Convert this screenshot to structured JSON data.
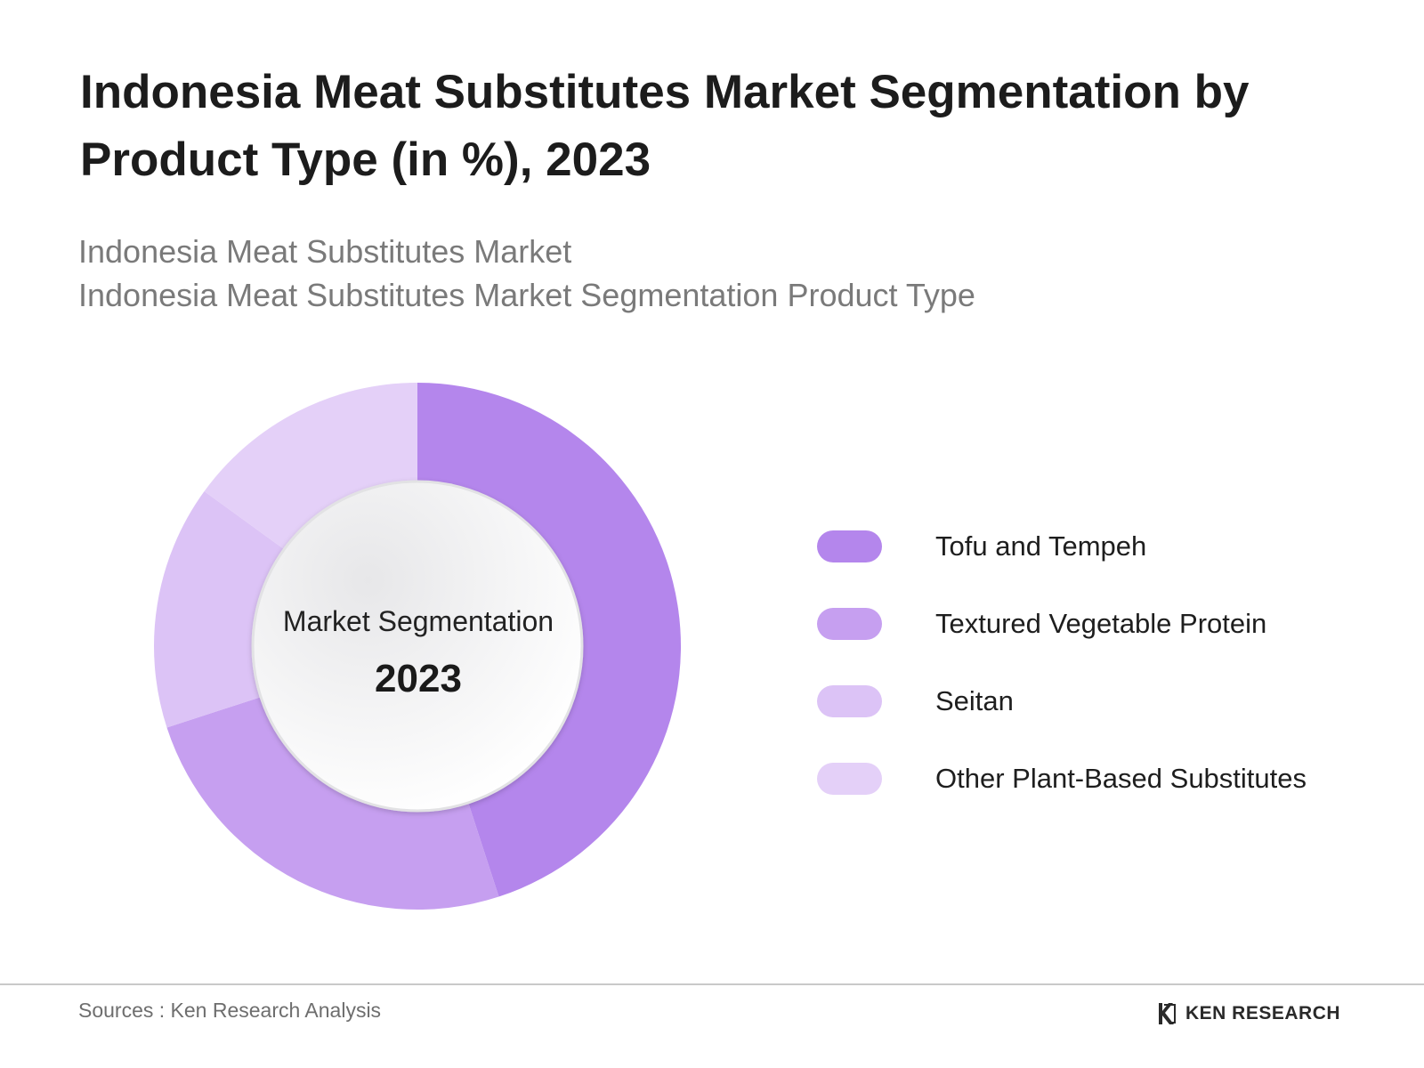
{
  "title": "Indonesia Meat Substitutes Market Segmentation by Product Type (in %), 2023",
  "subtitle_lines": [
    "Indonesia Meat Substitutes Market",
    "Indonesia Meat Substitutes Market Segmentation Product Type"
  ],
  "center": {
    "label": "Market Segmentation",
    "year": "2023"
  },
  "chart_data": {
    "type": "pie",
    "variant": "donut",
    "title": "Indonesia Meat Substitutes Market Segmentation by Product Type (in %), 2023",
    "categories": [
      "Tofu and Tempeh",
      "Textured Vegetable Protein",
      "Seitan",
      "Other Plant-Based Substitutes"
    ],
    "values": [
      45,
      25,
      15,
      15
    ],
    "colors": [
      "#b486ec",
      "#c69ff0",
      "#dcc3f6",
      "#e4d0f8"
    ],
    "legend_position": "right"
  },
  "legend": [
    {
      "label": "Tofu and Tempeh",
      "color": "#b486ec"
    },
    {
      "label": "Textured Vegetable Protein",
      "color": "#c69ff0"
    },
    {
      "label": "Seitan",
      "color": "#dcc3f6"
    },
    {
      "label": "Other Plant-Based Substitutes",
      "color": "#e4d0f8"
    }
  ],
  "footer": {
    "source": "Sources : Ken Research Analysis",
    "brand": "KEN RESEARCH",
    "brand_icon": "ken-research-logo-icon"
  }
}
